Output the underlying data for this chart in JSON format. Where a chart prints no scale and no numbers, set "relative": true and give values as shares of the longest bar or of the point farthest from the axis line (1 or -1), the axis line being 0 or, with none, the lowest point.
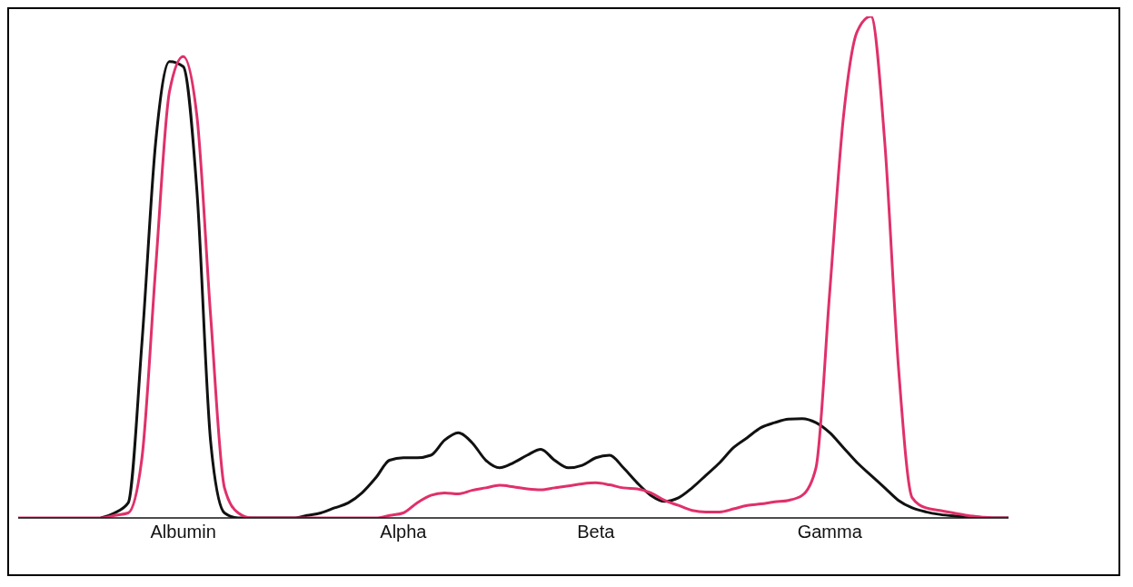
{
  "chart_data": {
    "type": "line",
    "relative": true,
    "line_style": "solid",
    "categories": [
      null,
      null,
      null,
      null,
      null,
      null,
      null,
      null,
      null,
      null,
      null,
      null,
      "Albumin",
      null,
      null,
      null,
      null,
      null,
      null,
      null,
      null,
      null,
      null,
      null,
      null,
      null,
      null,
      null,
      "Alpha",
      null,
      null,
      null,
      null,
      null,
      null,
      null,
      null,
      null,
      null,
      null,
      null,
      null,
      "Beta",
      null,
      null,
      null,
      null,
      null,
      null,
      null,
      null,
      null,
      null,
      null,
      null,
      null,
      null,
      null,
      null,
      "Gamma",
      null,
      null,
      null,
      null,
      null,
      null,
      null,
      null,
      null,
      null,
      null,
      null,
      null
    ],
    "series": [
      {
        "color": "#111111",
        "values": [
          null,
          null,
          null,
          null,
          null,
          null,
          0,
          0.01,
          0.03,
          0.35,
          0.75,
          0.91,
          0.9,
          0.65,
          0.15,
          0.01,
          0,
          0,
          0,
          0,
          0,
          0.005,
          0.01,
          0.02,
          0.03,
          0.05,
          0.08,
          0.115,
          0.12,
          0.12,
          0.125,
          0.155,
          0.17,
          0.15,
          0.115,
          0.1,
          0.11,
          0.125,
          0.137,
          0.115,
          0.1,
          0.105,
          0.12,
          0.125,
          0.1,
          0.07,
          0.045,
          0.033,
          0.04,
          0.06,
          0.085,
          0.11,
          0.14,
          0.16,
          0.18,
          0.19,
          0.197,
          0.198,
          0.19,
          0.17,
          0.14,
          0.11,
          0.085,
          0.06,
          0.035,
          0.02,
          0.012,
          0.007,
          0.004,
          0.002,
          0.001,
          0,
          0
        ]
      },
      {
        "color": "#e0306a",
        "values": [
          0,
          0,
          0,
          0,
          0,
          0,
          0,
          0.005,
          0.01,
          0.12,
          0.5,
          0.85,
          0.92,
          0.8,
          0.4,
          0.06,
          0.01,
          0,
          0,
          0,
          0,
          0,
          0,
          0,
          0,
          0,
          0,
          0.005,
          0.01,
          0.03,
          0.045,
          0.05,
          0.048,
          0.055,
          0.06,
          0.065,
          0.062,
          0.058,
          0.056,
          0.06,
          0.064,
          0.068,
          0.07,
          0.066,
          0.06,
          0.058,
          0.05,
          0.035,
          0.025,
          0.015,
          0.012,
          0.012,
          0.018,
          0.025,
          0.028,
          0.032,
          0.035,
          0.045,
          0.1,
          0.45,
          0.8,
          0.97,
          1,
          0.75,
          0.3,
          0.04,
          0.02,
          0.015,
          0.01,
          0.005,
          0.002,
          0,
          0
        ]
      }
    ]
  }
}
